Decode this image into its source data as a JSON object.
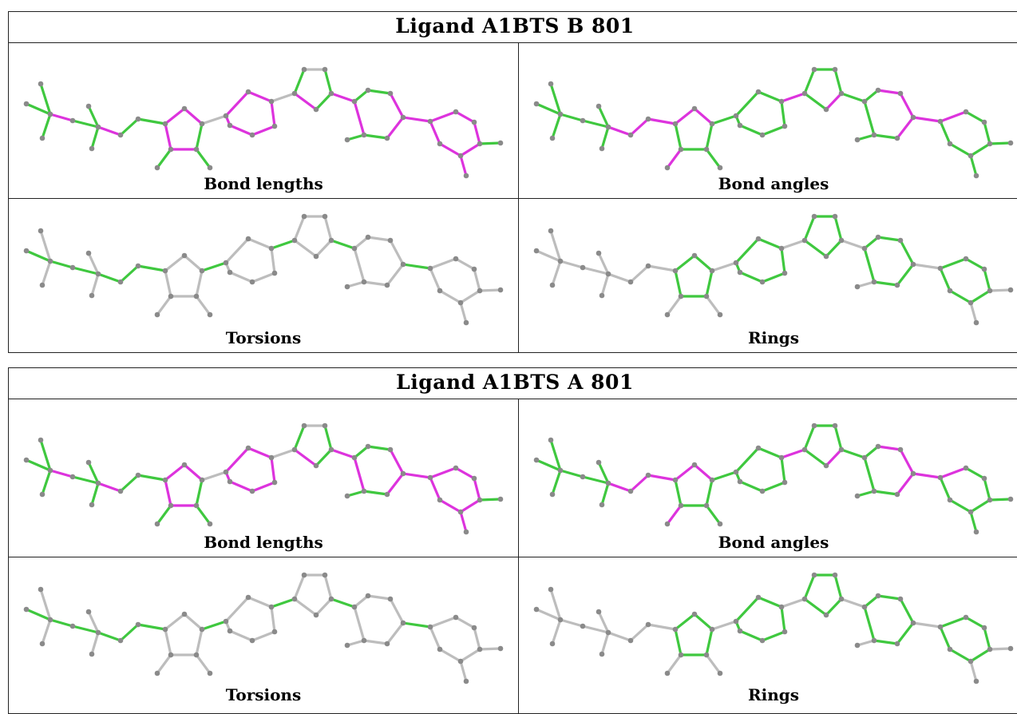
{
  "panels": [
    {
      "id": "b",
      "title": "Ligand A1BTS B 801",
      "cells": {
        "bond_lengths": "Bond lengths",
        "bond_angles": "Bond angles",
        "torsions": "Torsions",
        "rings": "Rings"
      }
    },
    {
      "id": "a",
      "title": "Ligand A1BTS A 801",
      "cells": {
        "bond_lengths": "Bond lengths",
        "bond_angles": "Bond angles",
        "torsions": "Torsions",
        "rings": "Rings"
      }
    }
  ],
  "colors": {
    "green": "#3fc83f",
    "magenta": "#dd33dd",
    "grey": "#bdbdbd",
    "atom": "#8a8a8a"
  }
}
